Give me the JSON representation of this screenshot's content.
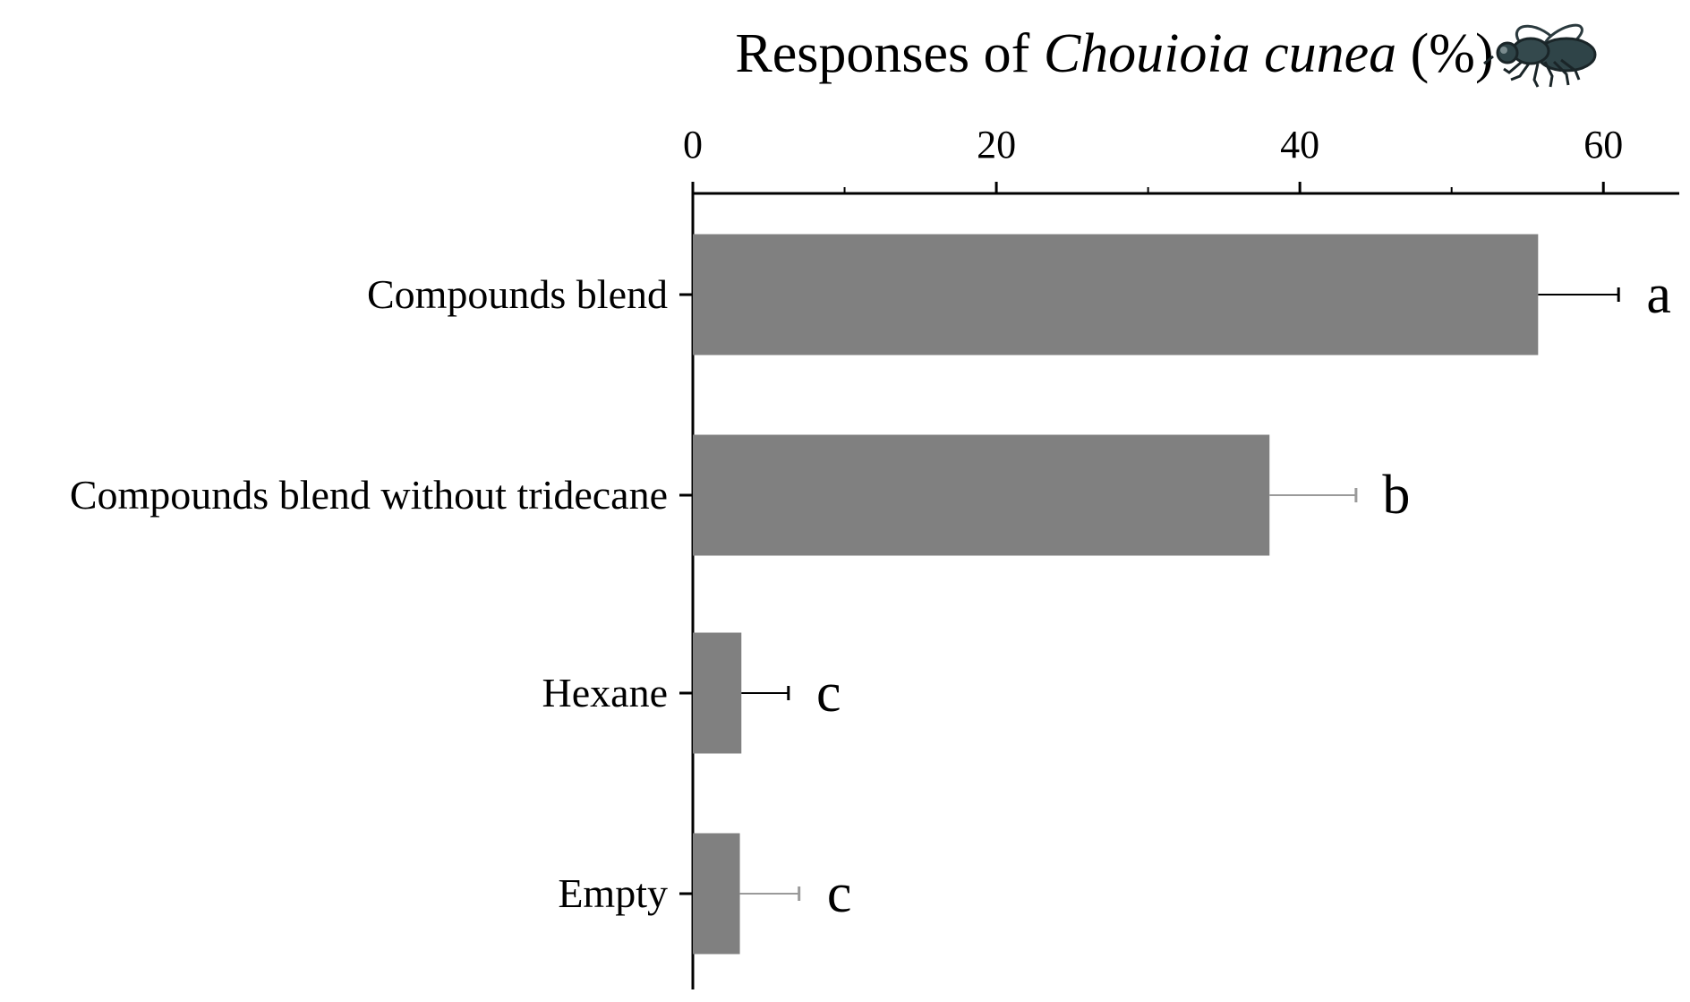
{
  "chart_data": {
    "type": "bar",
    "orientation": "horizontal",
    "title": {
      "prefix": "Responses of ",
      "italic": "Chouioia cunea",
      "suffix": " (%)"
    },
    "title_icon": "fly-icon",
    "categories": [
      "Compounds blend",
      "Compounds blend without tridecane",
      "Hexane",
      "Empty"
    ],
    "values": [
      55.7,
      38.0,
      3.2,
      3.1
    ],
    "errors": [
      5.3,
      5.7,
      3.1,
      3.9
    ],
    "significance_letters": [
      "a",
      "b",
      "c",
      "c"
    ],
    "xlim": [
      0,
      65
    ],
    "x_ticks": [
      0,
      20,
      40,
      60
    ],
    "x_tick_labels": [
      "0",
      "20",
      "40",
      "60"
    ],
    "x_minor_ticks": [
      10,
      30,
      50
    ],
    "axis_position": "top",
    "bar_color": "#808080",
    "error_bar_colors": [
      "#000000",
      "#9a9a9a",
      "#000000",
      "#9a9a9a"
    ],
    "grid": false,
    "legend": "none"
  }
}
